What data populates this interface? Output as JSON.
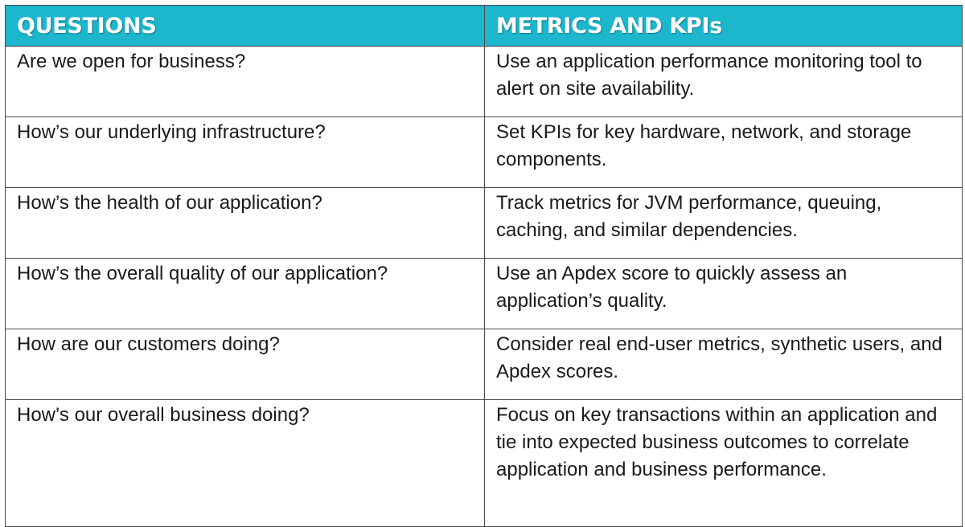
{
  "table": {
    "headers": [
      "QUESTIONS",
      "METRICS AND KPIs"
    ],
    "rows": [
      {
        "question": "Are we open for business?",
        "metric": "Use an application performance monitoring tool to alert on site availability."
      },
      {
        "question": "How’s our underlying infrastructure?",
        "metric": "Set KPIs for key hardware, network, and storage components."
      },
      {
        "question": "How’s the health of our application?",
        "metric": "Track metrics for JVM performance, queuing, caching, and similar dependencies."
      },
      {
        "question": "How’s the overall quality of our application?",
        "metric": "Use an Apdex score to quickly assess an application’s quality."
      },
      {
        "question": "How are our customers doing?",
        "metric": "Consider real end-user metrics, synthetic users, and Apdex scores."
      },
      {
        "question": "How’s our overall business doing?",
        "metric": "Focus on key transactions within an application and tie into expected business outcomes to correlate application and business performance."
      }
    ]
  },
  "colors": {
    "header_bg": "#1cb6cd",
    "header_text": "#ffffff",
    "border": "#4a4a4a",
    "body_text": "#1a1a1a"
  }
}
